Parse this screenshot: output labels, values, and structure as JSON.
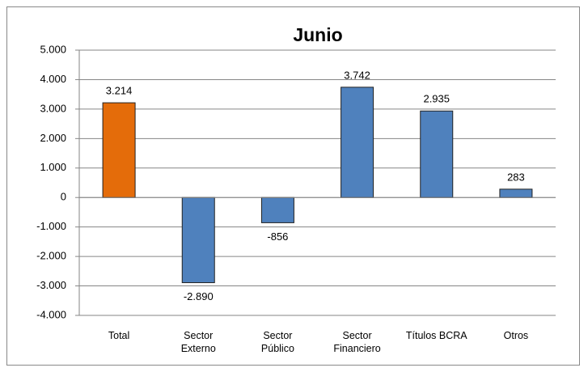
{
  "chart_data": {
    "type": "bar",
    "title": "Junio",
    "categories": [
      "Total",
      "Sector Externo",
      "Sector Público",
      "Sector Financiero",
      "Títulos BCRA",
      "Otros"
    ],
    "values": [
      3214,
      -2890,
      -856,
      3742,
      2935,
      283
    ],
    "value_labels": [
      "3.214",
      "-2.890",
      "-856",
      "3.742",
      "2.935",
      "283"
    ],
    "colors": [
      "#e46c0a",
      "#4f81bd",
      "#4f81bd",
      "#4f81bd",
      "#4f81bd",
      "#4f81bd"
    ],
    "ylim": [
      -4000,
      5000
    ],
    "yticks": [
      {
        "value": -4000,
        "label": "-4.000"
      },
      {
        "value": -3000,
        "label": "-3.000"
      },
      {
        "value": -2000,
        "label": "-2.000"
      },
      {
        "value": -1000,
        "label": "-1.000"
      },
      0,
      {
        "value": 1000,
        "label": "1.000"
      },
      {
        "value": 2000,
        "label": "2.000"
      },
      {
        "value": 3000,
        "label": "3.000"
      },
      {
        "value": 4000,
        "label": "4.000"
      },
      {
        "value": 5000,
        "label": "5.000"
      }
    ],
    "grid": true
  }
}
